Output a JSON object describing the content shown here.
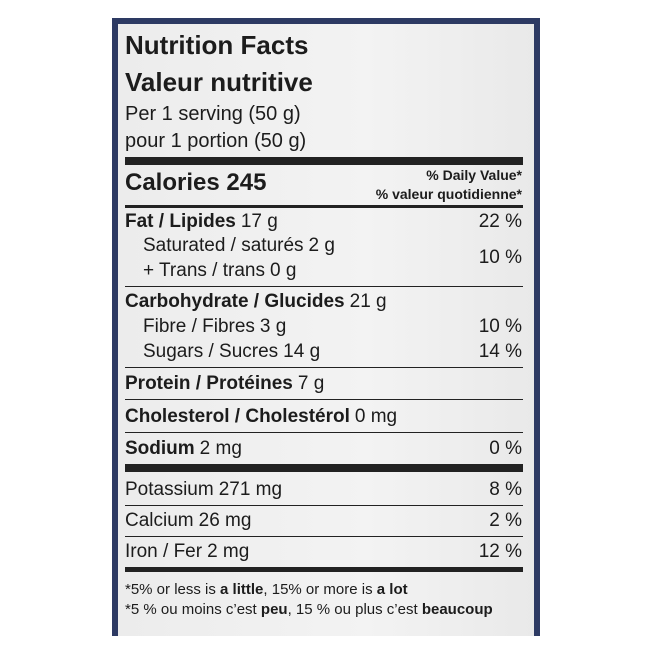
{
  "header": {
    "title_en": "Nutrition Facts",
    "title_fr": "Valeur nutritive",
    "serving_en": "Per 1 serving (50 g)",
    "serving_fr": "pour 1 portion (50 g)"
  },
  "calories": "Calories 245",
  "daily_value": {
    "en": "% Daily Value*",
    "fr": "% valeur quotidienne*"
  },
  "nutrients": [
    {
      "label": "Fat / Lipides",
      "amount": "17 g",
      "dv": "22 %"
    },
    {
      "label": "Saturated / saturés",
      "amount": "2 g",
      "dv": "10 %"
    },
    {
      "label": "+ Trans / trans",
      "amount": "0 g"
    },
    {
      "label": "Carbohydrate / Glucides",
      "amount": "21 g"
    },
    {
      "label": "Fibre / Fibres",
      "amount": "3 g",
      "dv": "10 %"
    },
    {
      "label": "Sugars / Sucres",
      "amount": "14 g",
      "dv": "14 %"
    },
    {
      "label": "Protein / Protéines",
      "amount": "7 g"
    },
    {
      "label": "Cholesterol / Cholestérol",
      "amount": "0 mg"
    },
    {
      "label": "Sodium",
      "amount": "2 mg",
      "dv": "0 %"
    },
    {
      "label": "Potassium",
      "amount": "271 mg",
      "dv": "8 %"
    },
    {
      "label": "Calcium",
      "amount": "26 mg",
      "dv": "2 %"
    },
    {
      "label": "Iron / Fer",
      "amount": "2 mg",
      "dv": "12 %"
    }
  ],
  "footnote": {
    "en": [
      "*5% or less is ",
      "a little",
      ", 15% or more is ",
      "a lot"
    ],
    "fr": [
      "*5 % ou moins c’est ",
      "peu",
      ", 15 % ou plus c’est ",
      "beaucoup"
    ]
  }
}
